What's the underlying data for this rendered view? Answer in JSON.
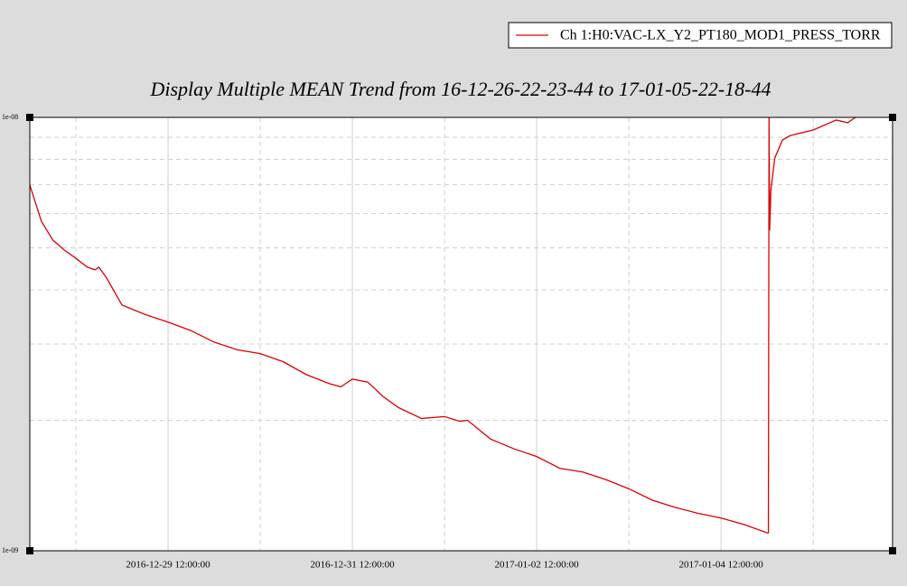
{
  "chart_data": {
    "type": "line",
    "title": "Display Multiple MEAN Trend from 16-12-26-22-23-44 to 17-01-05-22-18-44",
    "log_scale": true,
    "grid": true,
    "legend_position": "top-right",
    "xlim": [
      "2016-12-28 00:00:00",
      "2017-01-06 08:40:00"
    ],
    "xticks": [
      "2016-12-29 12:00:00",
      "2016-12-31 12:00:00",
      "2017-01-02 12:00:00",
      "2017-01-04 12:00:00"
    ],
    "minor_xticks": [
      "2016-12-28 12:00:00",
      "2016-12-30 12:00:00",
      "2017-01-01 12:00:00",
      "2017-01-03 12:00:00",
      "2017-01-05 12:00:00"
    ],
    "ylim": [
      1e-09,
      1e-08
    ],
    "yticks": [
      {
        "value": 1e-09,
        "label": "1e-09"
      },
      {
        "value": 1e-08,
        "label": "1e-08"
      }
    ],
    "minor_yticks": [
      2e-09,
      3e-09,
      4e-09,
      5e-09,
      6e-09,
      7e-09,
      8e-09,
      9e-09
    ],
    "x": [
      "2016-12-28 00:00:00",
      "2016-12-28 03:00:00",
      "2016-12-28 06:00:00",
      "2016-12-28 09:00:00",
      "2016-12-28 12:00:00",
      "2016-12-28 15:00:00",
      "2016-12-28 17:00:00",
      "2016-12-28 18:00:00",
      "2016-12-28 20:00:00",
      "2016-12-29 00:00:00",
      "2016-12-29 06:00:00",
      "2016-12-29 12:00:00",
      "2016-12-29 18:00:00",
      "2016-12-30 00:00:00",
      "2016-12-30 06:00:00",
      "2016-12-30 12:00:00",
      "2016-12-30 18:00:00",
      "2016-12-31 00:00:00",
      "2016-12-31 06:00:00",
      "2016-12-31 09:00:00",
      "2016-12-31 12:00:00",
      "2016-12-31 16:00:00",
      "2016-12-31 20:00:00",
      "2017-01-01 00:00:00",
      "2017-01-01 06:00:00",
      "2017-01-01 12:00:00",
      "2017-01-01 16:00:00",
      "2017-01-01 18:00:00",
      "2017-01-02 00:00:00",
      "2017-01-02 06:00:00",
      "2017-01-02 12:00:00",
      "2017-01-02 18:00:00",
      "2017-01-03 00:00:00",
      "2017-01-03 06:00:00",
      "2017-01-03 12:00:00",
      "2017-01-03 18:00:00",
      "2017-01-04 00:00:00",
      "2017-01-04 06:00:00",
      "2017-01-04 12:00:00",
      "2017-01-04 18:00:00",
      "2017-01-05 00:00:00",
      "2017-01-05 00:20:00",
      "2017-01-05 00:30:00",
      "2017-01-05 00:40:00",
      "2017-01-05 01:00:00",
      "2017-01-05 02:00:00",
      "2017-01-05 04:00:00",
      "2017-01-05 06:00:00",
      "2017-01-05 12:00:00",
      "2017-01-05 18:00:00",
      "2017-01-05 21:00:00",
      "2017-01-05 23:00:00"
    ],
    "series": [
      {
        "name": "Ch 1:H0:VAC-LX_Y2_PT180_MOD1_PRESS_TORR",
        "color": "#dd0000",
        "values": [
          6.98e-09,
          5.76e-09,
          5.21e-09,
          4.94e-09,
          4.73e-09,
          4.51e-09,
          4.45e-09,
          4.51e-09,
          4.26e-09,
          3.69e-09,
          3.51e-09,
          3.37e-09,
          3.22e-09,
          3.03e-09,
          2.91e-09,
          2.85e-09,
          2.73e-09,
          2.55e-09,
          2.43e-09,
          2.39e-09,
          2.49e-09,
          2.45e-09,
          2.27e-09,
          2.14e-09,
          2.02e-09,
          2.04e-09,
          1.99e-09,
          2e-09,
          1.81e-09,
          1.72e-09,
          1.65e-09,
          1.55e-09,
          1.52e-09,
          1.46e-09,
          1.39e-09,
          1.31e-09,
          1.26e-09,
          1.22e-09,
          1.19e-09,
          1.15e-09,
          1.1e-09,
          1.1e-09,
          1e-08,
          5.49e-09,
          6.81e-09,
          8.06e-09,
          8.87e-09,
          9.08e-09,
          9.35e-09,
          9.86e-09,
          9.72e-09,
          1e-08
        ]
      }
    ]
  }
}
